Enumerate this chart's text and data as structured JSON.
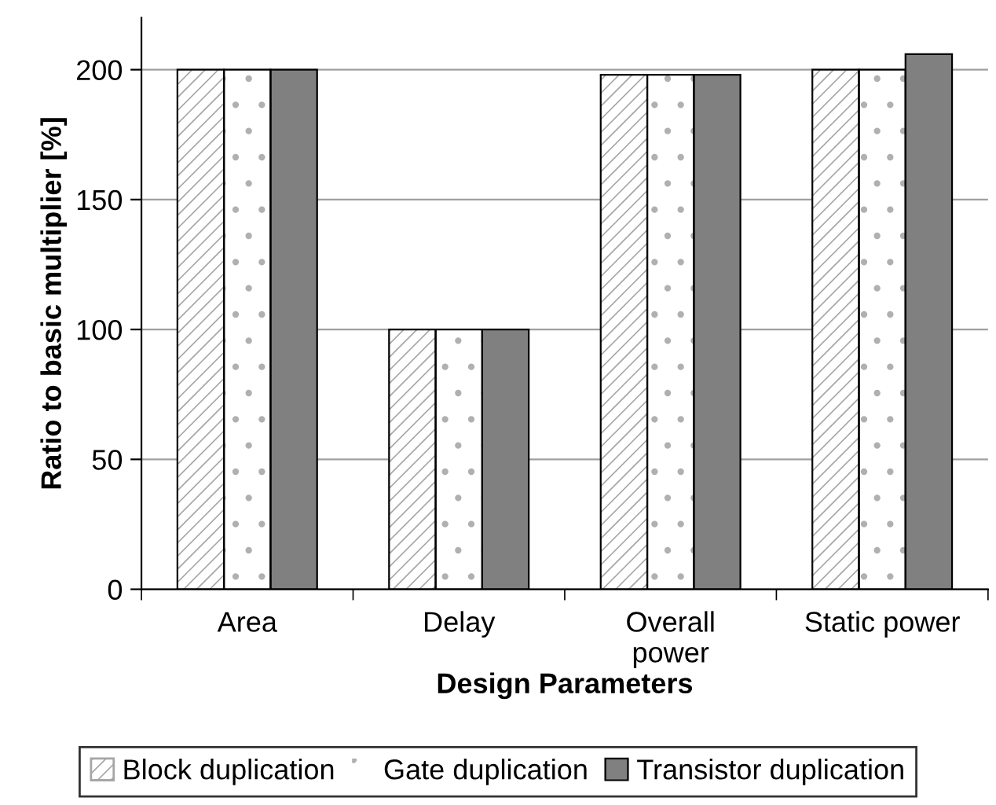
{
  "chart_data": {
    "type": "bar",
    "xlabel": "Design Parameters",
    "ylabel": "Ratio to basic multiplier [%]",
    "categories": [
      "Area",
      "Delay",
      "Overall\npower",
      "Static power"
    ],
    "series": [
      {
        "name": "Block duplication",
        "color": "#a6a6a6",
        "values": [
          200,
          100,
          198,
          200
        ]
      },
      {
        "name": "Gate duplication",
        "color": "#ffffff",
        "values": [
          200,
          100,
          198,
          200
        ]
      },
      {
        "name": "Transistor duplication",
        "color": "#808080",
        "values": [
          200,
          100,
          198,
          206
        ]
      }
    ],
    "ylim": [
      0,
      220
    ],
    "yticks": [
      0,
      50,
      100,
      150,
      200
    ],
    "grid": "y",
    "legend": "bottom"
  }
}
